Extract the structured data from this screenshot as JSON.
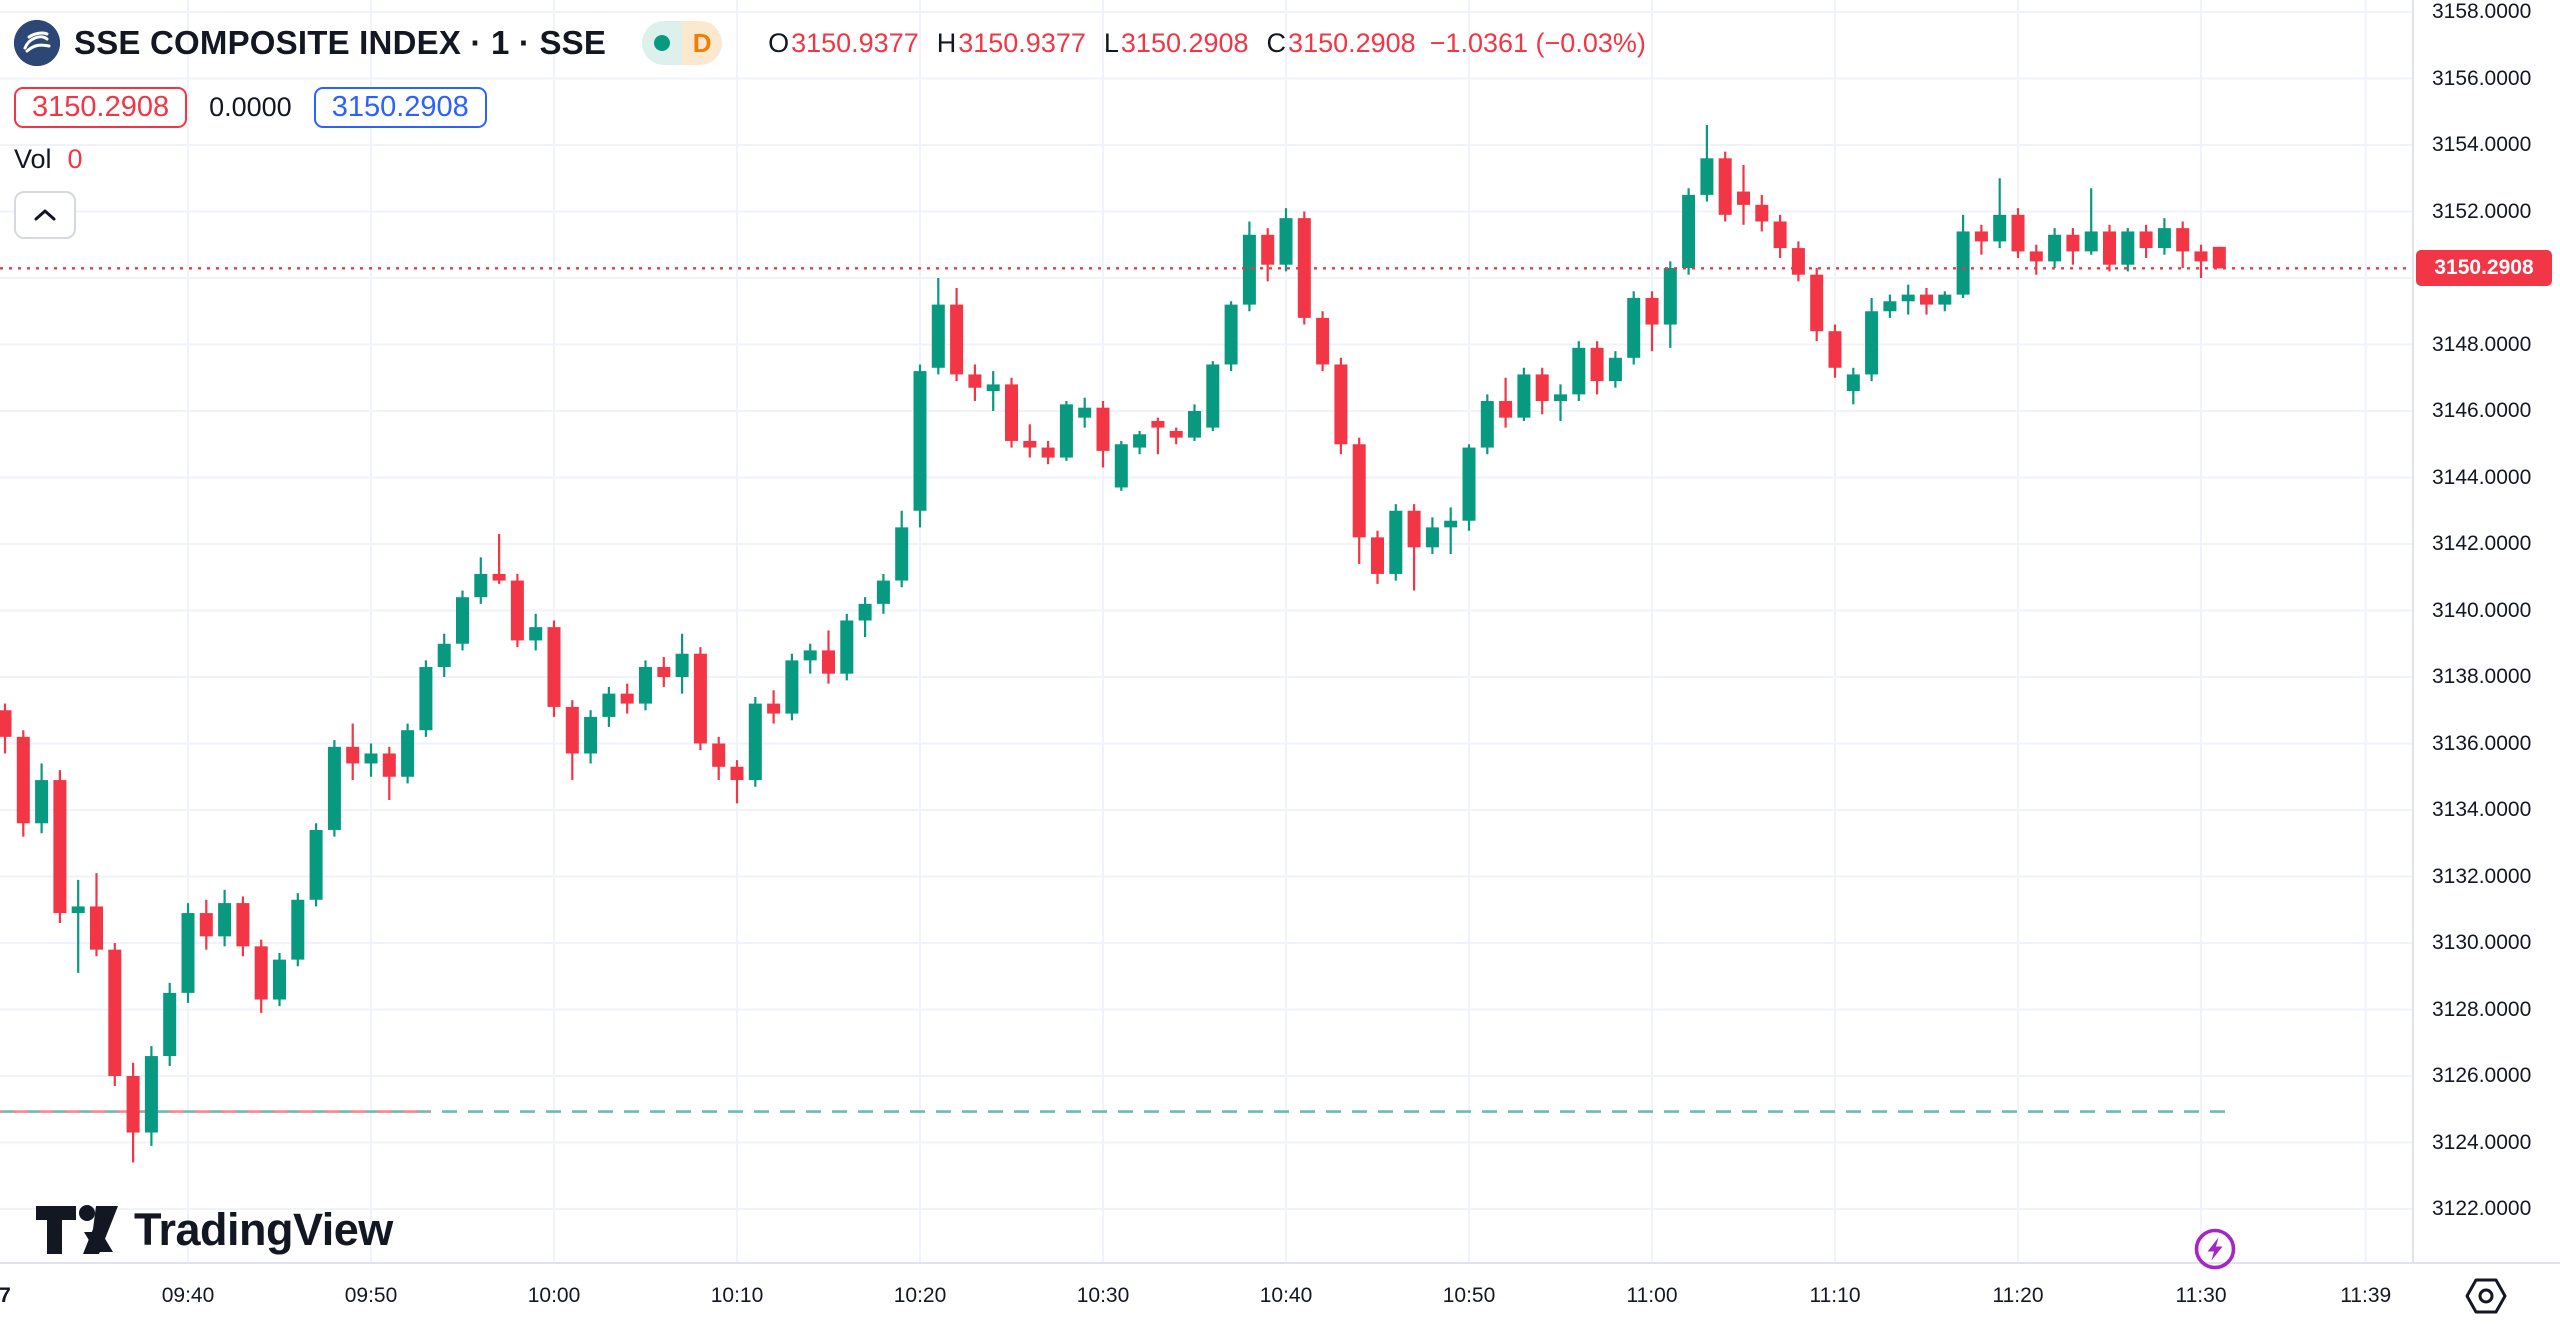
{
  "header": {
    "symbol_title": "SSE COMPOSITE INDEX · 1 · SSE",
    "interval_badge": "D",
    "ohlc": {
      "o_label": "O",
      "o": "3150.9377",
      "h_label": "H",
      "h": "3150.9377",
      "l_label": "L",
      "l": "3150.2908",
      "c_label": "C",
      "c": "3150.2908",
      "change": "−1.0361 (−0.03%)"
    },
    "sell_price": "3150.2908",
    "spread": "0.0000",
    "buy_price": "3150.2908",
    "vol_label": "Vol",
    "vol_value": "0"
  },
  "watermark_text": "TradingView",
  "colors": {
    "up": "#089981",
    "down": "#f23645",
    "accent_blue": "#2962ff",
    "text": "#131722",
    "grid": "#f0f3fa",
    "axis_border": "#e0e3eb",
    "price_line": "#f23645",
    "dashed_teal": "#6cbcb1",
    "dashed_salmon": "#f78a91",
    "flash_purple": "#a426c4"
  },
  "price_axis": {
    "labels": [
      "3158.0000",
      "3156.0000",
      "3154.0000",
      "3152.0000",
      "3150.0000",
      "3148.0000",
      "3146.0000",
      "3144.0000",
      "3142.0000",
      "3140.0000",
      "3138.0000",
      "3136.0000",
      "3134.0000",
      "3132.0000",
      "3130.0000",
      "3128.0000",
      "3126.0000",
      "3124.0000",
      "3122.0000"
    ],
    "last_price_label": "3150.2908"
  },
  "time_axis": [
    {
      "label": "7",
      "m": 0,
      "bold": true
    },
    {
      "label": "09:40",
      "m": 10
    },
    {
      "label": "09:50",
      "m": 20
    },
    {
      "label": "10:00",
      "m": 30
    },
    {
      "label": "10:10",
      "m": 40
    },
    {
      "label": "10:20",
      "m": 50
    },
    {
      "label": "10:30",
      "m": 60
    },
    {
      "label": "10:40",
      "m": 70
    },
    {
      "label": "10:50",
      "m": 80
    },
    {
      "label": "11:00",
      "m": 90
    },
    {
      "label": "11:10",
      "m": 100
    },
    {
      "label": "11:20",
      "m": 110
    },
    {
      "label": "11:30",
      "m": 120
    },
    {
      "label": "11:39",
      "m": 129
    }
  ],
  "chart_data": {
    "type": "candlestick",
    "title": "SSE Composite Index, 1 minute",
    "ylim": [
      3122,
      3158
    ],
    "grid": true,
    "price_line_value": 3150.2908,
    "dashed_line_value": 3124.93,
    "candles": [
      [
        "09:30",
        3137.0,
        3137.2,
        3135.7,
        3136.2
      ],
      [
        "09:31",
        3136.2,
        3136.4,
        3133.2,
        3133.6
      ],
      [
        "09:32",
        3133.6,
        3135.4,
        3133.3,
        3134.9
      ],
      [
        "09:33",
        3134.9,
        3135.2,
        3130.6,
        3130.9
      ],
      [
        "09:34",
        3130.9,
        3131.9,
        3129.1,
        3131.1
      ],
      [
        "09:35",
        3131.1,
        3132.1,
        3129.6,
        3129.8
      ],
      [
        "09:36",
        3129.8,
        3130.0,
        3125.7,
        3126.0
      ],
      [
        "09:37",
        3126.0,
        3126.4,
        3123.4,
        3124.3
      ],
      [
        "09:38",
        3124.3,
        3126.9,
        3123.9,
        3126.6
      ],
      [
        "09:39",
        3126.6,
        3128.8,
        3126.3,
        3128.5
      ],
      [
        "09:40",
        3128.5,
        3131.2,
        3128.2,
        3130.9
      ],
      [
        "09:41",
        3130.9,
        3131.3,
        3129.8,
        3130.2
      ],
      [
        "09:42",
        3130.2,
        3131.6,
        3129.9,
        3131.2
      ],
      [
        "09:43",
        3131.2,
        3131.4,
        3129.6,
        3129.9
      ],
      [
        "09:44",
        3129.9,
        3130.1,
        3127.9,
        3128.3
      ],
      [
        "09:45",
        3128.3,
        3129.7,
        3128.1,
        3129.5
      ],
      [
        "09:46",
        3129.5,
        3131.5,
        3129.3,
        3131.3
      ],
      [
        "09:47",
        3131.3,
        3133.6,
        3131.1,
        3133.4
      ],
      [
        "09:48",
        3133.4,
        3136.1,
        3133.2,
        3135.9
      ],
      [
        "09:49",
        3135.9,
        3136.6,
        3134.9,
        3135.4
      ],
      [
        "09:50",
        3135.4,
        3136.0,
        3135.0,
        3135.7
      ],
      [
        "09:51",
        3135.7,
        3135.9,
        3134.3,
        3135.0
      ],
      [
        "09:52",
        3135.0,
        3136.6,
        3134.8,
        3136.4
      ],
      [
        "09:53",
        3136.4,
        3138.5,
        3136.2,
        3138.3
      ],
      [
        "09:54",
        3138.3,
        3139.3,
        3138.0,
        3139.0
      ],
      [
        "09:55",
        3139.0,
        3140.6,
        3138.8,
        3140.4
      ],
      [
        "09:56",
        3140.4,
        3141.6,
        3140.2,
        3141.1
      ],
      [
        "09:57",
        3141.1,
        3142.3,
        3140.8,
        3140.9
      ],
      [
        "09:58",
        3140.9,
        3141.1,
        3138.9,
        3139.1
      ],
      [
        "09:59",
        3139.1,
        3139.9,
        3138.8,
        3139.5
      ],
      [
        "10:00",
        3139.5,
        3139.7,
        3136.8,
        3137.1
      ],
      [
        "10:01",
        3137.1,
        3137.3,
        3134.9,
        3135.7
      ],
      [
        "10:02",
        3135.7,
        3137.0,
        3135.4,
        3136.8
      ],
      [
        "10:03",
        3136.8,
        3137.7,
        3136.5,
        3137.5
      ],
      [
        "10:04",
        3137.5,
        3137.8,
        3136.9,
        3137.2
      ],
      [
        "10:05",
        3137.2,
        3138.5,
        3137.0,
        3138.3
      ],
      [
        "10:06",
        3138.3,
        3138.6,
        3137.7,
        3138.0
      ],
      [
        "10:07",
        3138.0,
        3139.3,
        3137.5,
        3138.7
      ],
      [
        "10:08",
        3138.7,
        3138.9,
        3135.8,
        3136.0
      ],
      [
        "10:09",
        3136.0,
        3136.2,
        3134.9,
        3135.3
      ],
      [
        "10:10",
        3135.3,
        3135.5,
        3134.2,
        3134.9
      ],
      [
        "10:11",
        3134.9,
        3137.4,
        3134.7,
        3137.2
      ],
      [
        "10:12",
        3137.2,
        3137.6,
        3136.6,
        3136.9
      ],
      [
        "10:13",
        3136.9,
        3138.7,
        3136.7,
        3138.5
      ],
      [
        "10:14",
        3138.5,
        3139.0,
        3138.1,
        3138.8
      ],
      [
        "10:15",
        3138.8,
        3139.4,
        3137.8,
        3138.1
      ],
      [
        "10:16",
        3138.1,
        3139.9,
        3137.9,
        3139.7
      ],
      [
        "10:17",
        3139.7,
        3140.4,
        3139.2,
        3140.2
      ],
      [
        "10:18",
        3140.2,
        3141.1,
        3139.9,
        3140.9
      ],
      [
        "10:19",
        3140.9,
        3143.0,
        3140.7,
        3142.5
      ],
      [
        "10:20",
        3143.0,
        3147.4,
        3142.5,
        3147.2
      ],
      [
        "10:21",
        3147.3,
        3150.0,
        3147.1,
        3149.2
      ],
      [
        "10:22",
        3149.2,
        3149.7,
        3146.9,
        3147.1
      ],
      [
        "10:23",
        3147.1,
        3147.4,
        3146.3,
        3146.7
      ],
      [
        "10:24",
        3146.6,
        3147.2,
        3146.0,
        3146.8
      ],
      [
        "10:25",
        3146.8,
        3147.0,
        3144.9,
        3145.1
      ],
      [
        "10:26",
        3145.1,
        3145.6,
        3144.6,
        3144.9
      ],
      [
        "10:27",
        3144.9,
        3145.1,
        3144.4,
        3144.6
      ],
      [
        "10:28",
        3144.6,
        3146.3,
        3144.5,
        3146.2
      ],
      [
        "10:29",
        3145.8,
        3146.4,
        3145.5,
        3146.1
      ],
      [
        "10:30",
        3146.1,
        3146.3,
        3144.3,
        3144.8
      ],
      [
        "10:31",
        3143.7,
        3145.1,
        3143.6,
        3145.0
      ],
      [
        "10:32",
        3144.9,
        3145.4,
        3144.7,
        3145.3
      ],
      [
        "10:33",
        3145.7,
        3145.8,
        3144.7,
        3145.5
      ],
      [
        "10:34",
        3145.4,
        3145.5,
        3145.0,
        3145.2
      ],
      [
        "10:35",
        3145.2,
        3146.2,
        3145.1,
        3146.0
      ],
      [
        "10:36",
        3145.5,
        3147.5,
        3145.4,
        3147.4
      ],
      [
        "10:37",
        3147.4,
        3149.3,
        3147.2,
        3149.2
      ],
      [
        "10:38",
        3149.2,
        3151.7,
        3149.0,
        3151.3
      ],
      [
        "10:39",
        3151.3,
        3151.5,
        3149.9,
        3150.4
      ],
      [
        "10:40",
        3150.4,
        3152.1,
        3150.2,
        3151.8
      ],
      [
        "10:41",
        3151.8,
        3152.0,
        3148.6,
        3148.8
      ],
      [
        "10:42",
        3148.8,
        3149.0,
        3147.2,
        3147.4
      ],
      [
        "10:43",
        3147.4,
        3147.6,
        3144.7,
        3145.0
      ],
      [
        "10:44",
        3145.0,
        3145.2,
        3141.4,
        3142.2
      ],
      [
        "10:45",
        3142.2,
        3142.4,
        3140.8,
        3141.1
      ],
      [
        "10:46",
        3141.1,
        3143.2,
        3140.9,
        3143.0
      ],
      [
        "10:47",
        3143.0,
        3143.2,
        3140.6,
        3141.9
      ],
      [
        "10:48",
        3141.9,
        3142.8,
        3141.7,
        3142.5
      ],
      [
        "10:49",
        3142.5,
        3143.1,
        3141.7,
        3142.7
      ],
      [
        "10:50",
        3142.7,
        3145.0,
        3142.4,
        3144.9
      ],
      [
        "10:51",
        3144.9,
        3146.5,
        3144.7,
        3146.3
      ],
      [
        "10:52",
        3146.3,
        3147.0,
        3145.5,
        3145.8
      ],
      [
        "10:53",
        3145.8,
        3147.3,
        3145.7,
        3147.1
      ],
      [
        "10:54",
        3147.1,
        3147.3,
        3145.9,
        3146.3
      ],
      [
        "10:55",
        3146.3,
        3146.8,
        3145.7,
        3146.5
      ],
      [
        "10:56",
        3146.5,
        3148.1,
        3146.3,
        3147.9
      ],
      [
        "10:57",
        3147.9,
        3148.1,
        3146.5,
        3146.9
      ],
      [
        "10:58",
        3146.9,
        3147.8,
        3146.7,
        3147.6
      ],
      [
        "10:59",
        3147.6,
        3149.6,
        3147.4,
        3149.4
      ],
      [
        "11:00",
        3149.4,
        3149.6,
        3147.8,
        3148.6
      ],
      [
        "11:01",
        3148.6,
        3150.5,
        3147.9,
        3150.3
      ],
      [
        "11:02",
        3150.3,
        3152.7,
        3150.1,
        3152.5
      ],
      [
        "11:03",
        3152.5,
        3154.6,
        3152.3,
        3153.6
      ],
      [
        "11:04",
        3153.6,
        3153.8,
        3151.7,
        3151.9
      ],
      [
        "11:05",
        3152.6,
        3153.4,
        3151.6,
        3152.2
      ],
      [
        "11:06",
        3152.2,
        3152.5,
        3151.4,
        3151.7
      ],
      [
        "11:07",
        3151.7,
        3151.9,
        3150.6,
        3150.9
      ],
      [
        "11:08",
        3150.9,
        3151.1,
        3149.9,
        3150.1
      ],
      [
        "11:09",
        3150.1,
        3150.3,
        3148.1,
        3148.4
      ],
      [
        "11:10",
        3148.4,
        3148.6,
        3147.0,
        3147.3
      ],
      [
        "11:11",
        3146.6,
        3147.3,
        3146.2,
        3147.1
      ],
      [
        "11:12",
        3147.1,
        3149.4,
        3146.9,
        3149.0
      ],
      [
        "11:13",
        3149.0,
        3149.5,
        3148.8,
        3149.3
      ],
      [
        "11:14",
        3149.3,
        3149.8,
        3148.9,
        3149.5
      ],
      [
        "11:15",
        3149.5,
        3149.7,
        3148.9,
        3149.2
      ],
      [
        "11:16",
        3149.2,
        3149.6,
        3149.0,
        3149.5
      ],
      [
        "11:17",
        3149.5,
        3151.9,
        3149.4,
        3151.4
      ],
      [
        "11:18",
        3151.4,
        3151.6,
        3150.7,
        3151.1
      ],
      [
        "11:19",
        3151.1,
        3153.0,
        3150.9,
        3151.9
      ],
      [
        "11:20",
        3151.9,
        3152.1,
        3150.6,
        3150.8
      ],
      [
        "11:21",
        3150.8,
        3151.0,
        3150.1,
        3150.5
      ],
      [
        "11:22",
        3150.5,
        3151.5,
        3150.3,
        3151.3
      ],
      [
        "11:23",
        3151.3,
        3151.5,
        3150.4,
        3150.8
      ],
      [
        "11:24",
        3150.8,
        3152.7,
        3150.7,
        3151.4
      ],
      [
        "11:25",
        3151.4,
        3151.6,
        3150.2,
        3150.4
      ],
      [
        "11:26",
        3150.4,
        3151.5,
        3150.2,
        3151.4
      ],
      [
        "11:27",
        3151.4,
        3151.6,
        3150.6,
        3150.9
      ],
      [
        "11:28",
        3150.9,
        3151.8,
        3150.7,
        3151.5
      ],
      [
        "11:29",
        3151.5,
        3151.7,
        3150.3,
        3150.8
      ],
      [
        "11:30",
        3150.8,
        3151.0,
        3150.0,
        3150.5
      ],
      [
        "11:31",
        3150.9377,
        3150.9377,
        3150.2908,
        3150.2908
      ]
    ]
  }
}
